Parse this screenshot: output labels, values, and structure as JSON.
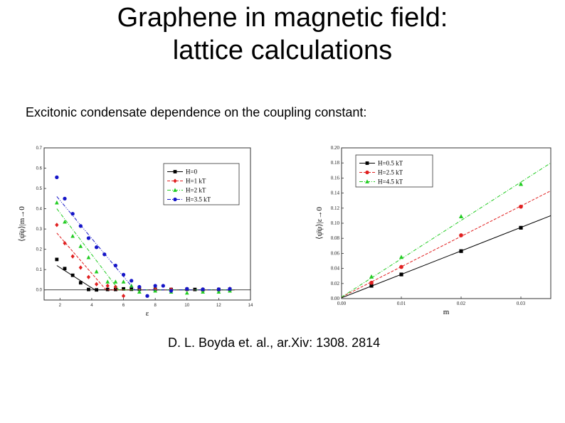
{
  "slide": {
    "title_line1": "Graphene in magnetic field:",
    "title_line2": "lattice calculations",
    "subtitle": "Excitonic condensate dependence on the coupling constant:",
    "citation": "D. L. Boyda et. al., ar.Xiv: 1308. 2814"
  },
  "chart_data": [
    {
      "type": "scatter",
      "xlabel": "ε",
      "ylabel": "⟨ψ̄ψ⟩|m→0",
      "xlim": [
        1,
        14
      ],
      "ylim": [
        -0.05,
        0.7
      ],
      "xticks": [
        2,
        4,
        6,
        8,
        10,
        12,
        14
      ],
      "yticks": [
        0.0,
        0.1,
        0.2,
        0.3,
        0.4,
        0.5,
        0.6,
        0.7
      ],
      "xtick_labels": [
        "2",
        "4",
        "6",
        "8",
        "10",
        "12",
        "14"
      ],
      "ytick_labels": [
        "0.0",
        "0.1",
        "0.2",
        "0.3",
        "0.4",
        "0.5",
        "0.6",
        "0.7"
      ],
      "legend_position": "top-right",
      "grid": false,
      "series": [
        {
          "name": "H=0",
          "color": "#000000",
          "marker": "square",
          "dash": "solid",
          "points": [
            [
              1.8,
              0.15
            ],
            [
              2.3,
              0.105
            ],
            [
              2.8,
              0.072
            ],
            [
              3.3,
              0.035
            ],
            [
              3.8,
              0.002
            ],
            [
              4.3,
              0.0
            ],
            [
              5.0,
              0.002
            ],
            [
              5.5,
              0.002
            ],
            [
              6.0,
              0.005
            ],
            [
              6.5,
              0.003
            ],
            [
              7.0,
              0.003
            ],
            [
              8.0,
              0.003
            ],
            [
              9.0,
              0.002
            ],
            [
              10.0,
              0.003
            ],
            [
              10.5,
              0.002
            ],
            [
              11.0,
              0.001
            ],
            [
              12.0,
              0.002
            ],
            [
              12.7,
              0.003
            ]
          ],
          "fit": [
            [
              1.8,
              0.12
            ],
            [
              4.2,
              0.0
            ],
            [
              13,
              0.0
            ]
          ]
        },
        {
          "name": "H=1 kT",
          "color": "#e02020",
          "marker": "diamond",
          "dash": "dashed",
          "points": [
            [
              1.8,
              0.32
            ],
            [
              2.3,
              0.23
            ],
            [
              2.8,
              0.165
            ],
            [
              3.3,
              0.11
            ],
            [
              3.8,
              0.063
            ],
            [
              4.3,
              0.028
            ],
            [
              5.0,
              0.02
            ],
            [
              5.5,
              0.015
            ],
            [
              6.0,
              -0.03
            ],
            [
              7.0,
              0.01
            ],
            [
              8.0,
              0.003
            ],
            [
              9.0,
              0.002
            ],
            [
              10.0,
              0.003
            ],
            [
              11.0,
              0.002
            ],
            [
              12.0,
              0.002
            ],
            [
              12.7,
              0.005
            ]
          ],
          "fit": [
            [
              1.8,
              0.28
            ],
            [
              4.9,
              0.0
            ],
            [
              13,
              0.0
            ]
          ]
        },
        {
          "name": "H=2 kT",
          "color": "#22cc22",
          "marker": "triangle",
          "dash": "dashdot",
          "points": [
            [
              1.8,
              0.43
            ],
            [
              2.3,
              0.335
            ],
            [
              2.8,
              0.265
            ],
            [
              3.3,
              0.215
            ],
            [
              3.8,
              0.16
            ],
            [
              4.3,
              0.09
            ],
            [
              5.0,
              0.04
            ],
            [
              5.5,
              0.04
            ],
            [
              6.0,
              0.04
            ],
            [
              6.5,
              0.02
            ],
            [
              7.0,
              -0.01
            ],
            [
              8.0,
              -0.005
            ],
            [
              9.0,
              -0.01
            ],
            [
              10.0,
              -0.015
            ],
            [
              11.0,
              -0.01
            ],
            [
              12.0,
              -0.01
            ],
            [
              12.7,
              -0.005
            ]
          ],
          "fit": [
            [
              1.8,
              0.4
            ],
            [
              5.7,
              0.0
            ],
            [
              13,
              0.0
            ]
          ]
        },
        {
          "name": "H=3.5 kT",
          "color": "#1515c8",
          "marker": "circle",
          "dash": "dashdotdot",
          "points": [
            [
              1.8,
              0.555
            ],
            [
              2.3,
              0.45
            ],
            [
              2.8,
              0.375
            ],
            [
              3.3,
              0.315
            ],
            [
              3.8,
              0.255
            ],
            [
              4.3,
              0.21
            ],
            [
              4.8,
              0.175
            ],
            [
              5.5,
              0.12
            ],
            [
              6.0,
              0.075
            ],
            [
              6.5,
              0.045
            ],
            [
              7.0,
              0.015
            ],
            [
              7.5,
              -0.03
            ],
            [
              8.0,
              0.02
            ],
            [
              8.5,
              0.02
            ],
            [
              9.0,
              -0.005
            ],
            [
              10.0,
              0.005
            ],
            [
              11.0,
              0.003
            ],
            [
              12.0,
              0.003
            ],
            [
              12.7,
              0.005
            ]
          ],
          "fit": [
            [
              1.8,
              0.46
            ],
            [
              6.7,
              0.0
            ],
            [
              13,
              0.0
            ]
          ]
        }
      ]
    },
    {
      "type": "scatter",
      "xlabel": "m",
      "ylabel": "⟨ψ̄ψ⟩|ε→0",
      "xlim": [
        0.0,
        0.035
      ],
      "ylim": [
        0.0,
        0.2
      ],
      "xticks": [
        0.0,
        0.01,
        0.02,
        0.03
      ],
      "yticks": [
        0.0,
        0.02,
        0.04,
        0.06,
        0.08,
        0.1,
        0.12,
        0.14,
        0.16,
        0.18,
        0.2
      ],
      "xtick_labels": [
        "0.00",
        "0.01",
        "0.02",
        "0.03"
      ],
      "ytick_labels": [
        "0.00",
        "0.02",
        "0.04",
        "0.06",
        "0.08",
        "0.10",
        "0.12",
        "0.14",
        "0.16",
        "0.18",
        "0.20"
      ],
      "legend_position": "top-left",
      "grid": false,
      "series": [
        {
          "name": "H=0.5 kT",
          "color": "#000000",
          "marker": "square",
          "dash": "solid",
          "points": [
            [
              0.005,
              0.017
            ],
            [
              0.01,
              0.032
            ],
            [
              0.02,
              0.063
            ],
            [
              0.03,
              0.094
            ]
          ],
          "fit": [
            [
              0.0,
              0.001
            ],
            [
              0.035,
              0.11
            ]
          ]
        },
        {
          "name": "H=2.5 kT",
          "color": "#e02020",
          "marker": "circle",
          "dash": "dashed",
          "points": [
            [
              0.005,
              0.021
            ],
            [
              0.01,
              0.042
            ],
            [
              0.02,
              0.084
            ],
            [
              0.03,
              0.122
            ]
          ],
          "fit": [
            [
              0.0,
              0.002
            ],
            [
              0.035,
              0.143
            ]
          ]
        },
        {
          "name": "H=4.5 kT",
          "color": "#22cc22",
          "marker": "triangle",
          "dash": "dashdot",
          "points": [
            [
              0.005,
              0.029
            ],
            [
              0.01,
              0.055
            ],
            [
              0.02,
              0.109
            ],
            [
              0.03,
              0.152
            ]
          ],
          "fit": [
            [
              0.0,
              0.002
            ],
            [
              0.035,
              0.18
            ]
          ]
        }
      ]
    }
  ]
}
